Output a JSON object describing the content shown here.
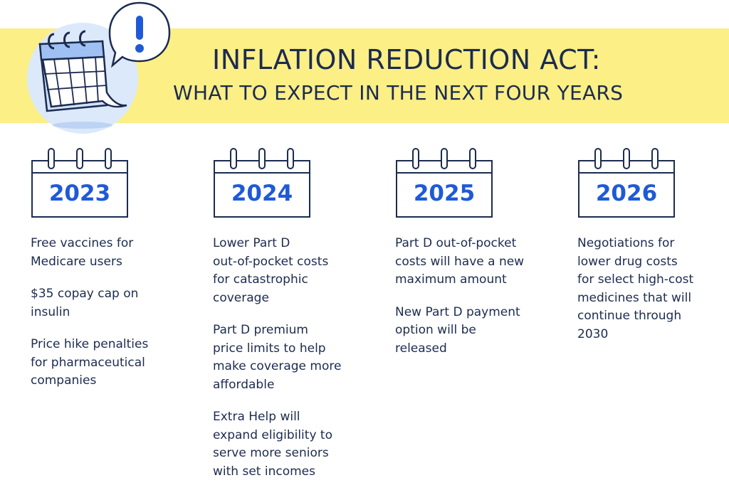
{
  "header": {
    "title": "INFLATION REDUCTION ACT:",
    "subtitle": "WHAT TO EXPECT IN THE NEXT FOUR YEARS",
    "banner_color": "#fbef86",
    "text_color": "#1c2b4f",
    "illustration_icons": [
      "calendar-icon",
      "exclamation-icon"
    ]
  },
  "accent_color": "#1f5ad6",
  "columns": [
    {
      "year": "2023",
      "items": [
        "Free vaccines for\nMedicare users",
        "$35 copay cap on\ninsulin",
        "Price hike penalties\nfor pharmaceutical\ncompanies"
      ]
    },
    {
      "year": "2024",
      "items": [
        "Lower Part D\nout-of-pocket costs\nfor catastrophic\ncoverage",
        "Part D premium\nprice limits to help\nmake coverage more\naffordable",
        "Extra Help will\nexpand eligibility to\nserve more seniors\nwith set incomes"
      ]
    },
    {
      "year": "2025",
      "items": [
        "Part D out-of-pocket\ncosts will have a new\nmaximum amount",
        "New Part D payment\noption will be\nreleased"
      ]
    },
    {
      "year": "2026",
      "items": [
        "Negotiations for\nlower drug costs\nfor select high-cost\nmedicines that will\ncontinue through\n2030"
      ]
    }
  ]
}
